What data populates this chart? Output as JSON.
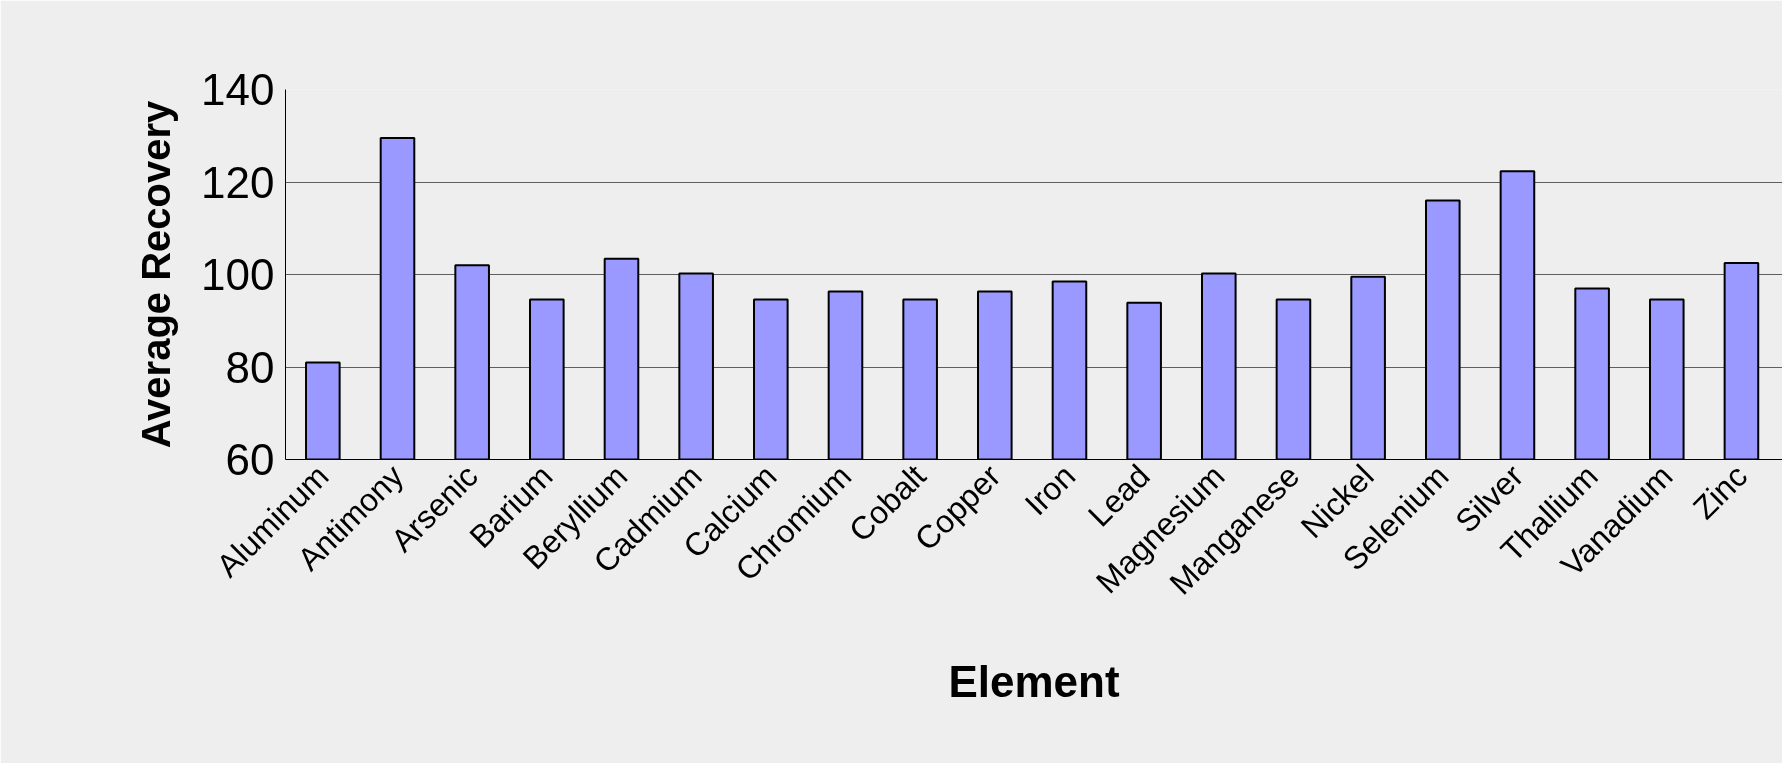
{
  "chart_data": {
    "type": "bar",
    "xlabel": "Element",
    "ylabel": "Average Recovery",
    "categories": [
      "Aluminum",
      "Antimony",
      "Arsenic",
      "Barium",
      "Beryllium",
      "Cadmium",
      "Calcium",
      "Chromium",
      "Cobalt",
      "Copper",
      "Iron",
      "Lead",
      "Magnesium",
      "Manganese",
      "Nickel",
      "Selenium",
      "Silver",
      "Thallium",
      "Vanadium",
      "Zinc"
    ],
    "values": [
      81,
      129.5,
      102,
      94.6,
      103.4,
      100.2,
      94.6,
      96.3,
      94.6,
      96.3,
      98.5,
      93.9,
      100.2,
      94.6,
      99.5,
      116,
      122.3,
      97,
      94.6,
      102.5
    ],
    "color": "#9999ff",
    "ylim": [
      60,
      140
    ],
    "yticks": [
      60,
      80,
      100,
      120,
      140
    ],
    "grid": "y"
  }
}
